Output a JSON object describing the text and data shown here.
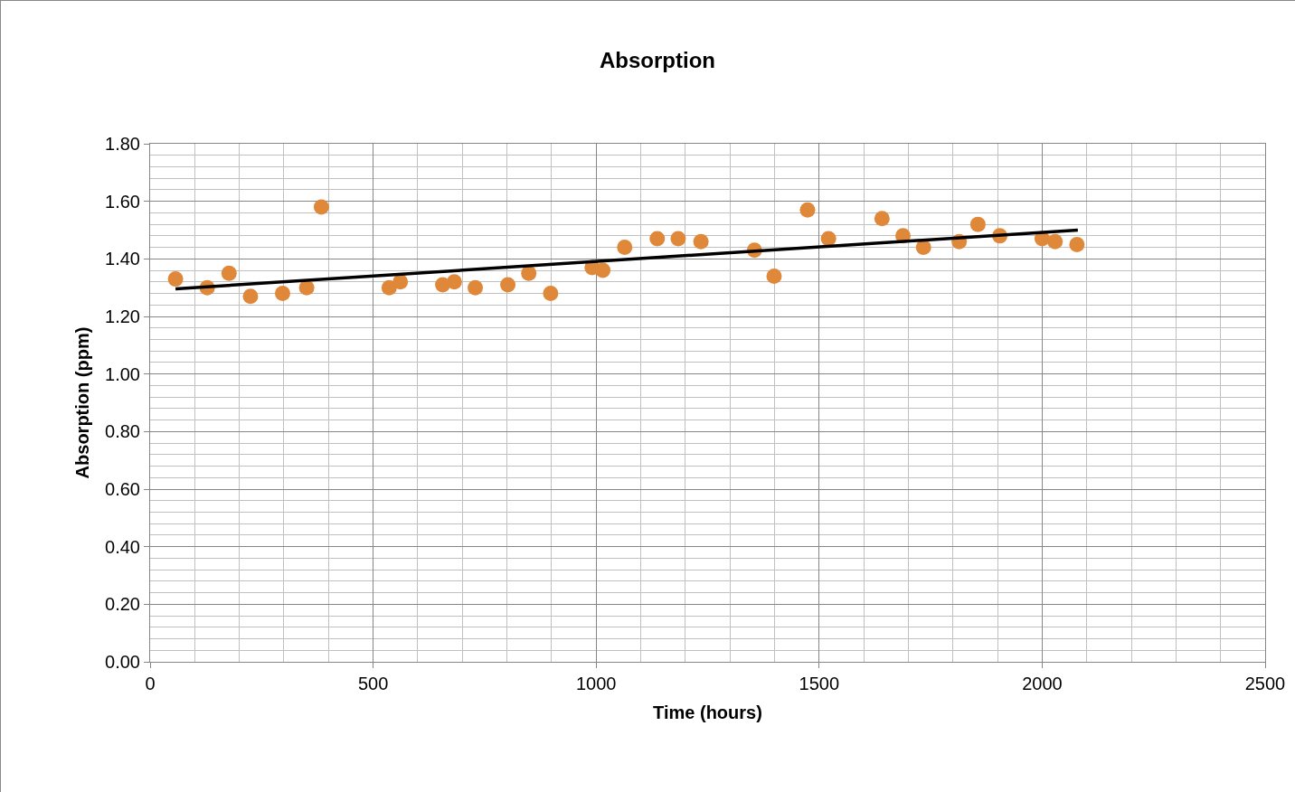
{
  "chart_data": {
    "type": "scatter",
    "title": "Absorption",
    "xlabel": "Time (hours)",
    "ylabel": "Absorption (ppm)",
    "xlim": [
      0,
      2500
    ],
    "xticks": [
      0,
      500,
      1000,
      1500,
      2000,
      2500
    ],
    "ylim": [
      0,
      1.8
    ],
    "yticks": [
      {
        "value": 0,
        "label": "0.00"
      },
      {
        "value": 0.2,
        "label": "0.20"
      },
      {
        "value": 0.4,
        "label": "0.40"
      },
      {
        "value": 0.6,
        "label": "0.60"
      },
      {
        "value": 0.8,
        "label": "0.80"
      },
      {
        "value": 1,
        "label": "1.00"
      },
      {
        "value": 1.2,
        "label": "1.20"
      },
      {
        "value": 1.4,
        "label": "1.40"
      },
      {
        "value": 1.6,
        "label": "1.60"
      },
      {
        "value": 1.8,
        "label": "1.80"
      }
    ],
    "grid": true,
    "legend": false,
    "marker": "circle",
    "series": [
      {
        "color": "#e0883a",
        "x": [
          57,
          128,
          177,
          225,
          297,
          351,
          384,
          536,
          561,
          656,
          682,
          729,
          802,
          849,
          898,
          991,
          1015,
          1064,
          1137,
          1184,
          1235,
          1355,
          1399,
          1474,
          1521,
          1641,
          1688,
          1734,
          1814,
          1856,
          1905,
          2000,
          2029,
          2078
        ],
        "values": [
          1.33,
          1.3,
          1.35,
          1.27,
          1.28,
          1.3,
          1.58,
          1.3,
          1.32,
          1.31,
          1.32,
          1.3,
          1.31,
          1.35,
          1.28,
          1.37,
          1.36,
          1.44,
          1.47,
          1.47,
          1.46,
          1.43,
          1.34,
          1.57,
          1.47,
          1.54,
          1.48,
          1.44,
          1.46,
          1.52,
          1.48,
          1.47,
          1.46,
          1.45
        ]
      },
      {
        "type": "line",
        "color": "#000000",
        "x": [
          57,
          2080
        ],
        "values": [
          1.296,
          1.5
        ],
        "marker": "none",
        "line_style": "solid"
      }
    ]
  }
}
